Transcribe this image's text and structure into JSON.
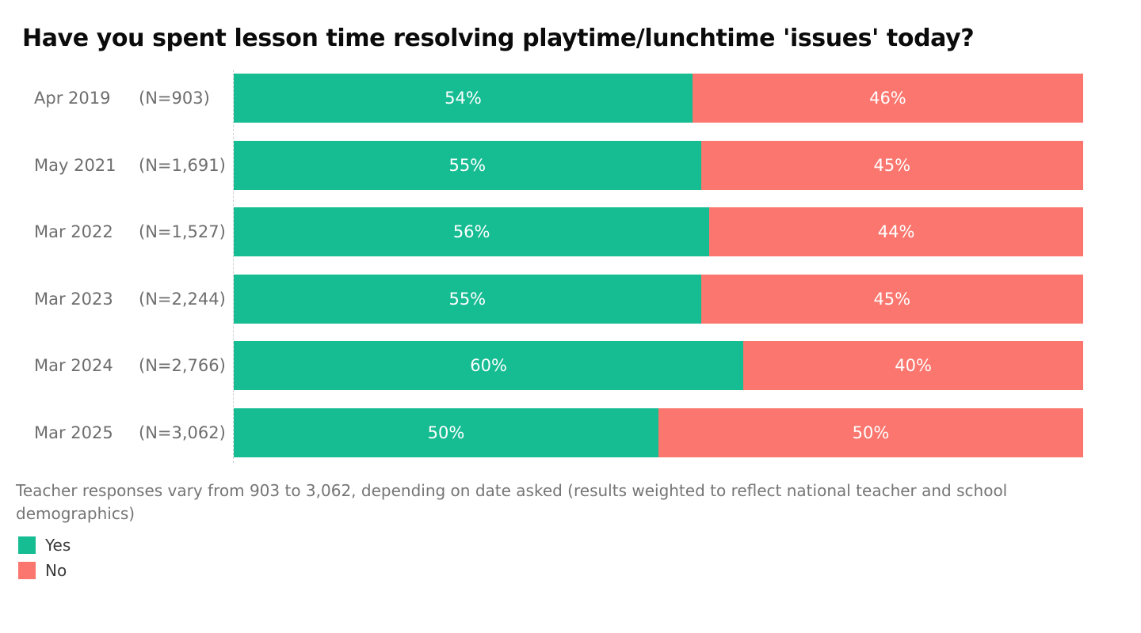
{
  "title": "Have you spent lesson time resolving playtime/lunchtime 'issues' today?",
  "footnote": "Teacher responses vary from 903 to 3,062, depending on date asked (results weighted to reflect national teacher and school demographics)",
  "chart_data": {
    "type": "bar",
    "orientation": "horizontal",
    "stacked": true,
    "title": "Have you spent lesson time resolving playtime/lunchtime 'issues' today?",
    "categories": [
      "Apr 2019",
      "May 2021",
      "Mar 2022",
      "Mar 2023",
      "Mar 2024",
      "Mar 2025"
    ],
    "sample_labels": [
      "(N=903)",
      "(N=1,691)",
      "(N=1,527)",
      "(N=2,244)",
      "(N=2,766)",
      "(N=3,062)"
    ],
    "series": [
      {
        "name": "Yes",
        "color": "#16BC92",
        "values": [
          54,
          55,
          56,
          55,
          60,
          50
        ]
      },
      {
        "name": "No",
        "color": "#FA766E",
        "values": [
          46,
          45,
          44,
          45,
          40,
          50
        ]
      }
    ],
    "value_suffix": "%",
    "xlim": [
      0,
      100
    ],
    "grid": false,
    "legend_position": "bottom-left"
  },
  "legend": {
    "items": [
      {
        "label": "Yes",
        "color": "#16BC92"
      },
      {
        "label": "No",
        "color": "#FA766E"
      }
    ]
  },
  "colors": {
    "yes_segment": "#16BC92",
    "no_segment": "#FA766E",
    "row_label_text": "#6E6E6E",
    "footnote_text": "#757575",
    "legend_text": "#3A3A3A",
    "title_text": "#0B0B0B",
    "bar_value_text": "#FFFFFF",
    "axis_dash_line": "#D2D2D2",
    "background": "#FFFFFF"
  }
}
